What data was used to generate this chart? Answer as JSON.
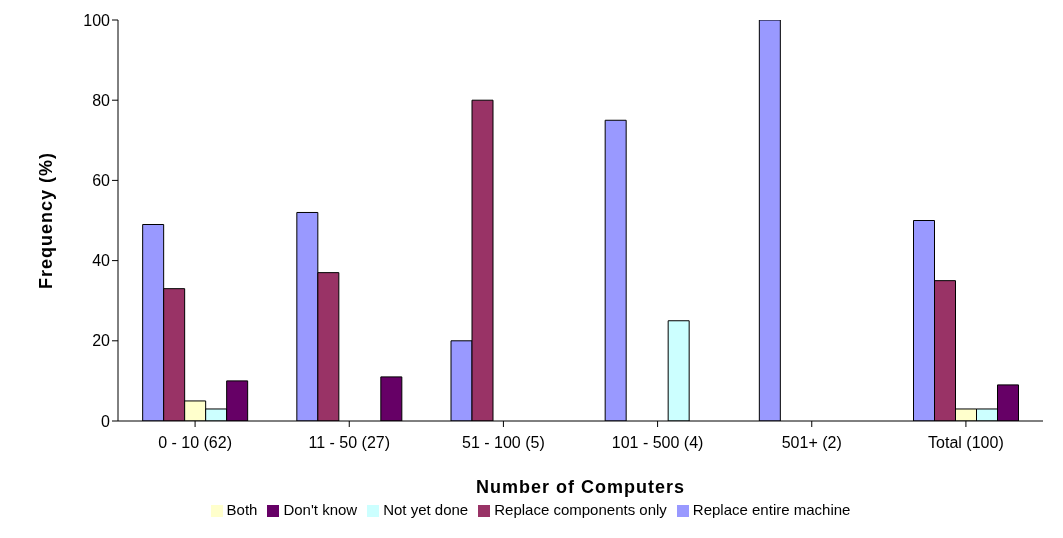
{
  "chart_data": {
    "type": "bar",
    "xlabel": "Number of Computers",
    "ylabel": "Frequency (%)",
    "categories": [
      "0 - 10 (62)",
      "11 - 50 (27)",
      "51 - 100 (5)",
      "101 - 500 (4)",
      "501+ (2)",
      "Total (100)"
    ],
    "series": [
      {
        "name": "Replace entire machine",
        "color": "#9999ff",
        "values": [
          49,
          52,
          20,
          75,
          100,
          50
        ]
      },
      {
        "name": "Replace components only",
        "color": "#993366",
        "values": [
          33,
          37,
          80,
          0,
          0,
          35
        ]
      },
      {
        "name": "Both",
        "color": "#ffffcc",
        "values": [
          5,
          0,
          0,
          0,
          0,
          3
        ]
      },
      {
        "name": "Not yet done",
        "color": "#ccffff",
        "values": [
          3,
          0,
          0,
          25,
          0,
          3
        ]
      },
      {
        "name": "Don't know",
        "color": "#660066",
        "values": [
          10,
          11,
          0,
          0,
          0,
          9
        ]
      }
    ],
    "ylim": [
      0,
      100
    ],
    "yticks": [
      0,
      20,
      40,
      60,
      80,
      100
    ],
    "grid": false,
    "legend": "bottom"
  }
}
